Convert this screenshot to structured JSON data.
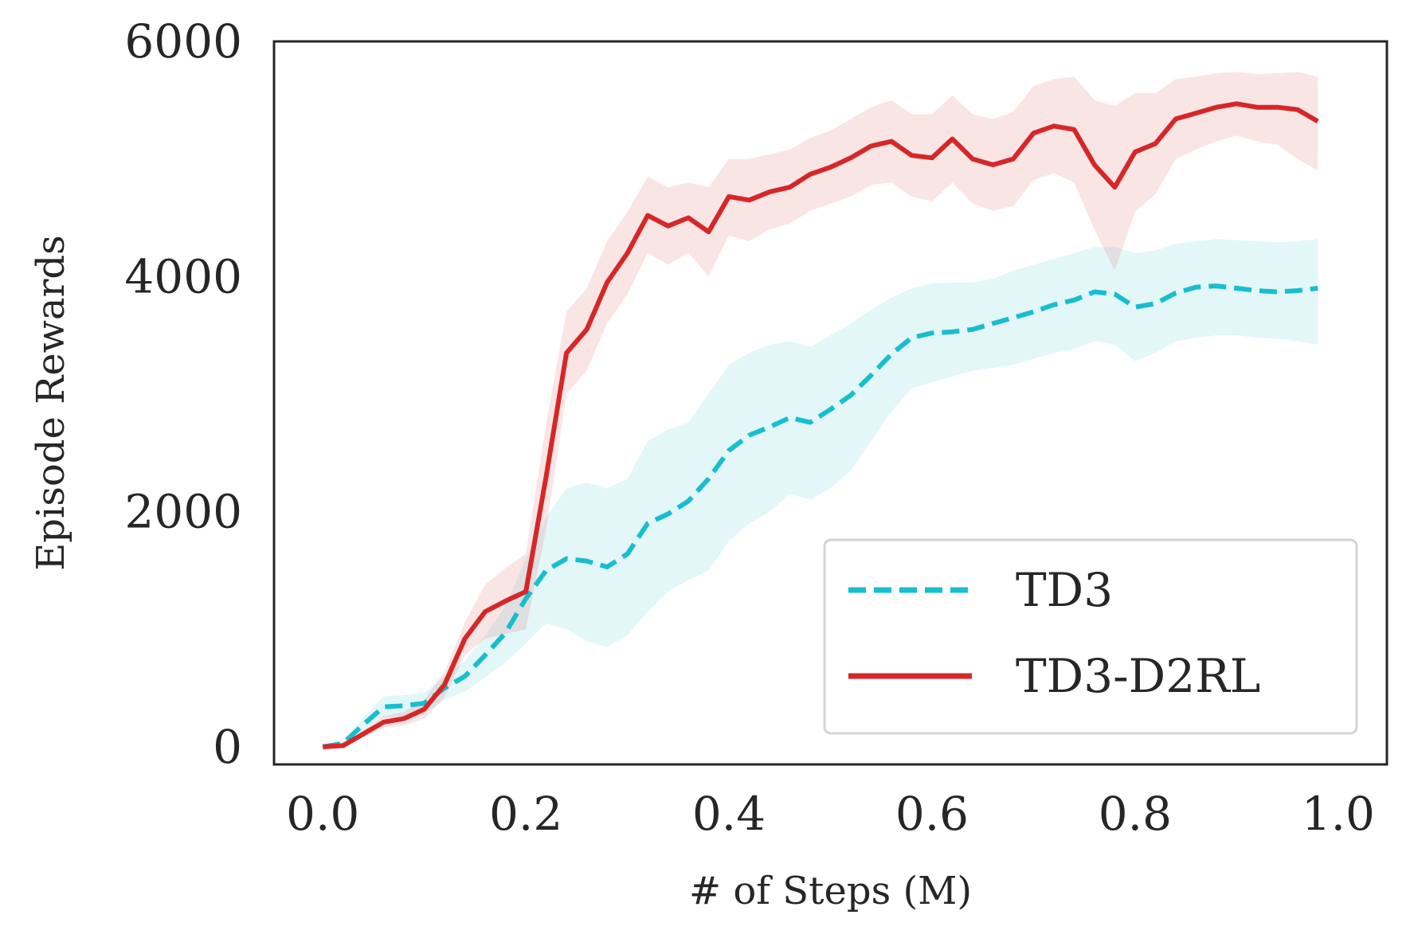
{
  "chart_data": {
    "type": "line",
    "xlabel": "# of Steps (M)",
    "ylabel": "Episode Rewards",
    "xlim": [
      -0.048,
      1.048
    ],
    "ylim": [
      -150,
      6000
    ],
    "xticks": [
      0.0,
      0.2,
      0.4,
      0.6,
      0.8,
      1.0
    ],
    "xtick_labels": [
      "0.0",
      "0.2",
      "0.4",
      "0.6",
      "0.8",
      "1.0"
    ],
    "yticks": [
      0,
      2000,
      4000,
      6000
    ],
    "ytick_labels": [
      "0",
      "2000",
      "4000",
      "6000"
    ],
    "grid": false,
    "legend": "lower-right",
    "series": [
      {
        "name": "TD3",
        "color": "#17becf",
        "style": "dashed",
        "x": [
          0.0,
          0.02,
          0.04,
          0.06,
          0.08,
          0.1,
          0.12,
          0.14,
          0.16,
          0.18,
          0.2,
          0.22,
          0.24,
          0.26,
          0.28,
          0.3,
          0.32,
          0.34,
          0.36,
          0.38,
          0.4,
          0.42,
          0.44,
          0.46,
          0.48,
          0.5,
          0.52,
          0.54,
          0.56,
          0.58,
          0.6,
          0.62,
          0.64,
          0.66,
          0.68,
          0.7,
          0.72,
          0.74,
          0.76,
          0.78,
          0.8,
          0.82,
          0.84,
          0.86,
          0.88,
          0.9,
          0.92,
          0.94,
          0.96,
          0.98
        ],
        "y": [
          0,
          30,
          190,
          340,
          350,
          370,
          500,
          600,
          780,
          970,
          1260,
          1500,
          1600,
          1580,
          1530,
          1640,
          1900,
          1980,
          2090,
          2280,
          2520,
          2650,
          2720,
          2800,
          2760,
          2870,
          2990,
          3160,
          3340,
          3480,
          3520,
          3530,
          3550,
          3600,
          3650,
          3700,
          3760,
          3800,
          3870,
          3850,
          3740,
          3770,
          3860,
          3910,
          3920,
          3900,
          3880,
          3870,
          3880,
          3900
        ],
        "lower": [
          0,
          20,
          130,
          250,
          260,
          280,
          400,
          470,
          590,
          720,
          880,
          1050,
          1000,
          900,
          850,
          950,
          1150,
          1320,
          1420,
          1500,
          1750,
          1900,
          2000,
          2150,
          2100,
          2200,
          2350,
          2600,
          2850,
          3050,
          3100,
          3150,
          3200,
          3220,
          3250,
          3300,
          3350,
          3380,
          3450,
          3420,
          3280,
          3350,
          3450,
          3480,
          3500,
          3500,
          3480,
          3470,
          3450,
          3420
        ],
        "upper": [
          0,
          40,
          250,
          430,
          440,
          460,
          600,
          730,
          950,
          1200,
          1600,
          1950,
          2200,
          2250,
          2200,
          2280,
          2600,
          2700,
          2760,
          3000,
          3250,
          3350,
          3420,
          3450,
          3400,
          3500,
          3600,
          3720,
          3820,
          3900,
          3940,
          3950,
          3950,
          3980,
          4050,
          4100,
          4150,
          4200,
          4250,
          4250,
          4200,
          4220,
          4280,
          4300,
          4320,
          4310,
          4300,
          4290,
          4300,
          4320
        ]
      },
      {
        "name": "TD3-D2RL",
        "color": "#d62728",
        "style": "solid",
        "x": [
          0.0,
          0.02,
          0.04,
          0.06,
          0.08,
          0.1,
          0.12,
          0.14,
          0.16,
          0.18,
          0.2,
          0.22,
          0.24,
          0.26,
          0.28,
          0.3,
          0.32,
          0.34,
          0.36,
          0.38,
          0.4,
          0.42,
          0.44,
          0.46,
          0.48,
          0.5,
          0.52,
          0.54,
          0.56,
          0.58,
          0.6,
          0.62,
          0.64,
          0.66,
          0.68,
          0.7,
          0.72,
          0.74,
          0.76,
          0.78,
          0.8,
          0.82,
          0.84,
          0.86,
          0.88,
          0.9,
          0.92,
          0.94,
          0.96,
          0.98
        ],
        "y": [
          0,
          10,
          110,
          210,
          240,
          320,
          530,
          920,
          1150,
          1240,
          1320,
          2300,
          3350,
          3550,
          3950,
          4200,
          4520,
          4430,
          4500,
          4380,
          4680,
          4650,
          4720,
          4760,
          4870,
          4930,
          5010,
          5110,
          5150,
          5030,
          5010,
          5170,
          5000,
          4950,
          5000,
          5220,
          5280,
          5250,
          4950,
          4760,
          5060,
          5130,
          5340,
          5390,
          5440,
          5470,
          5440,
          5440,
          5420,
          5320
        ],
        "lower": [
          0,
          0,
          80,
          160,
          180,
          240,
          420,
          780,
          920,
          960,
          1000,
          1850,
          3000,
          3200,
          3600,
          3850,
          4200,
          4100,
          4200,
          4000,
          4350,
          4300,
          4400,
          4450,
          4560,
          4620,
          4680,
          4780,
          4800,
          4680,
          4640,
          4800,
          4620,
          4560,
          4600,
          4820,
          4880,
          4800,
          4400,
          4050,
          4550,
          4700,
          5000,
          5080,
          5150,
          5200,
          5150,
          5120,
          5000,
          4900
        ],
        "upper": [
          0,
          20,
          140,
          260,
          300,
          400,
          640,
          1060,
          1380,
          1520,
          1640,
          2750,
          3700,
          3900,
          4300,
          4550,
          4850,
          4760,
          4800,
          4760,
          5000,
          5000,
          5040,
          5080,
          5180,
          5240,
          5340,
          5440,
          5500,
          5380,
          5380,
          5540,
          5380,
          5340,
          5400,
          5620,
          5680,
          5700,
          5500,
          5450,
          5560,
          5560,
          5680,
          5700,
          5730,
          5740,
          5720,
          5730,
          5740,
          5700
        ]
      }
    ]
  }
}
